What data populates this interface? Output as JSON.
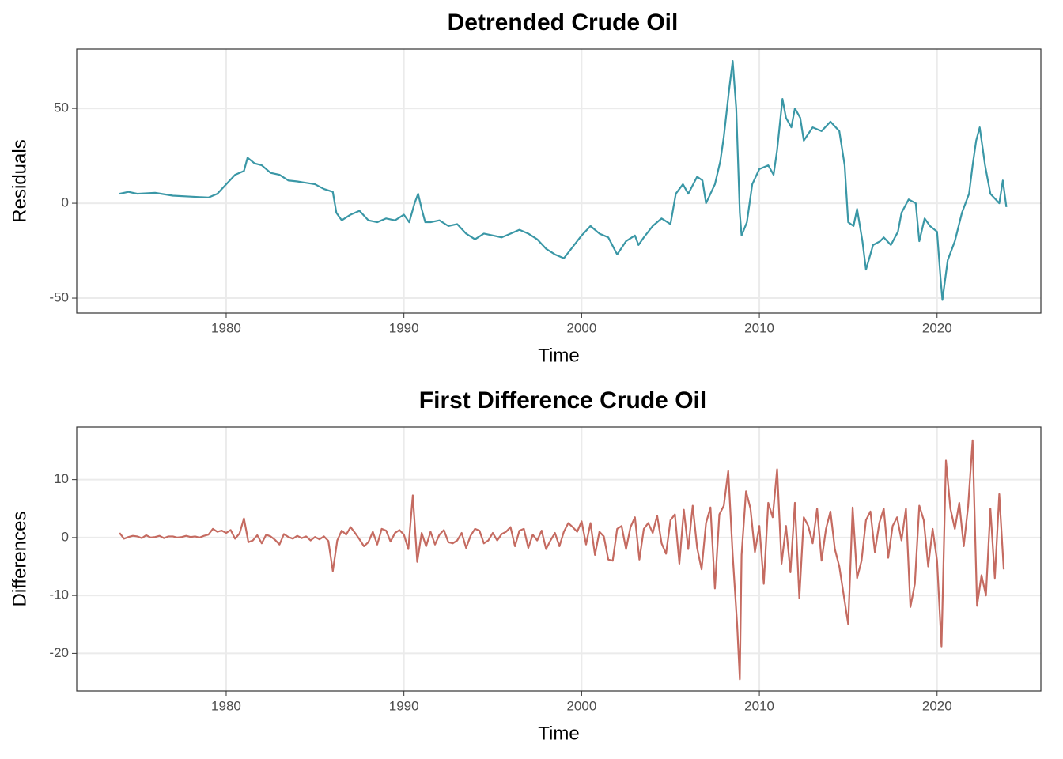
{
  "chart_data": [
    {
      "type": "line",
      "title": "Detrended Crude Oil",
      "x_label": "Time",
      "y_label": "Residuals",
      "color": "#3a97a6",
      "grid": true,
      "xlim": [
        1971.59,
        2025.84
      ],
      "ylim": [
        -57.9,
        81.3
      ],
      "xticks": [
        1980,
        1990,
        2000,
        2010,
        2020
      ],
      "yticks": [
        -50,
        0,
        50
      ],
      "x": [
        1974,
        1974.5,
        1975,
        1976,
        1977,
        1978,
        1979,
        1979.5,
        1980,
        1980.5,
        1981,
        1981.2,
        1981.6,
        1982,
        1982.5,
        1983,
        1983.5,
        1984,
        1985,
        1985.5,
        1986,
        1986.2,
        1986.5,
        1987,
        1987.5,
        1988,
        1988.5,
        1989,
        1989.5,
        1990,
        1990.3,
        1990.6,
        1990.8,
        1991,
        1991.2,
        1991.5,
        1992,
        1992.5,
        1993,
        1993.5,
        1994,
        1994.5,
        1995,
        1995.5,
        1996,
        1996.5,
        1997,
        1997.5,
        1998,
        1998.5,
        1999,
        1999.5,
        2000,
        2000.5,
        2001,
        2001.5,
        2002,
        2002.5,
        2003,
        2003.2,
        2003.5,
        2004,
        2004.5,
        2005,
        2005.3,
        2005.7,
        2006,
        2006.5,
        2006.8,
        2007,
        2007.5,
        2007.8,
        2008,
        2008.3,
        2008.5,
        2008.7,
        2008.9,
        2009,
        2009.3,
        2009.6,
        2010,
        2010.5,
        2010.8,
        2011,
        2011.3,
        2011.5,
        2011.8,
        2012,
        2012.3,
        2012.5,
        2013,
        2013.5,
        2014,
        2014.5,
        2014.8,
        2015,
        2015.3,
        2015.5,
        2015.8,
        2016,
        2016.4,
        2016.8,
        2017,
        2017.4,
        2017.8,
        2018,
        2018.4,
        2018.8,
        2019,
        2019.3,
        2019.6,
        2020,
        2020.2,
        2020.3,
        2020.6,
        2021,
        2021.4,
        2021.8,
        2022,
        2022.2,
        2022.4,
        2022.7,
        2023,
        2023.5,
        2023.7,
        2023.9
      ],
      "values": [
        5,
        6,
        5,
        5.5,
        4,
        3.5,
        3,
        5,
        10,
        15,
        17,
        24,
        21,
        20,
        16,
        15,
        12,
        11.5,
        10,
        7.5,
        6,
        -5,
        -9,
        -6,
        -4,
        -9,
        -10,
        -8,
        -9,
        -6,
        -10,
        0,
        5,
        -3,
        -10,
        -10,
        -9,
        -12,
        -11,
        -16,
        -19,
        -16,
        -17,
        -18,
        -16,
        -14,
        -16,
        -19,
        -24,
        -27,
        -29,
        -23,
        -17,
        -12,
        -16,
        -18,
        -27,
        -20,
        -17,
        -22,
        -18,
        -12,
        -8,
        -11,
        5,
        10,
        5,
        14,
        12,
        0,
        10,
        22,
        35,
        60,
        75,
        50,
        -5,
        -17,
        -10,
        10,
        18,
        20,
        15,
        28,
        55,
        45,
        40,
        50,
        45,
        33,
        40,
        38,
        43,
        38,
        20,
        -10,
        -12,
        -3,
        -20,
        -35,
        -22,
        -20,
        -18,
        -22,
        -15,
        -5,
        2,
        0,
        -20,
        -8,
        -12,
        -15,
        -40,
        -51,
        -30,
        -20,
        -5,
        5,
        20,
        33,
        40,
        20,
        5,
        0,
        12,
        -2
      ]
    },
    {
      "type": "line",
      "title": "First Difference Crude Oil",
      "x_label": "Time",
      "y_label": "Differences",
      "color": "#c56b61",
      "grid": true,
      "xlim": [
        1971.59,
        2025.84
      ],
      "ylim": [
        -26.5,
        19.1
      ],
      "xticks": [
        1980,
        1990,
        2000,
        2010,
        2020
      ],
      "yticks": [
        -20,
        -10,
        0,
        10
      ],
      "x": [
        1974,
        1974.25,
        1974.5,
        1974.75,
        1975,
        1975.25,
        1975.5,
        1975.75,
        1976,
        1976.25,
        1976.5,
        1976.75,
        1977,
        1977.25,
        1977.5,
        1977.75,
        1978,
        1978.25,
        1978.5,
        1978.75,
        1979,
        1979.25,
        1979.5,
        1979.75,
        1980,
        1980.25,
        1980.5,
        1980.75,
        1981,
        1981.25,
        1981.5,
        1981.75,
        1982,
        1982.25,
        1982.5,
        1982.75,
        1983,
        1983.25,
        1983.5,
        1983.75,
        1984,
        1984.25,
        1984.5,
        1984.75,
        1985,
        1985.25,
        1985.5,
        1985.75,
        1986,
        1986.25,
        1986.5,
        1986.75,
        1987,
        1987.25,
        1987.5,
        1987.75,
        1988,
        1988.25,
        1988.5,
        1988.75,
        1989,
        1989.25,
        1989.5,
        1989.75,
        1990,
        1990.25,
        1990.5,
        1990.75,
        1991,
        1991.25,
        1991.5,
        1991.75,
        1992,
        1992.25,
        1992.5,
        1992.75,
        1993,
        1993.25,
        1993.5,
        1993.75,
        1994,
        1994.25,
        1994.5,
        1994.75,
        1995,
        1995.25,
        1995.5,
        1995.75,
        1996,
        1996.25,
        1996.5,
        1996.75,
        1997,
        1997.25,
        1997.5,
        1997.75,
        1998,
        1998.25,
        1998.5,
        1998.75,
        1999,
        1999.25,
        1999.5,
        1999.75,
        2000,
        2000.25,
        2000.5,
        2000.75,
        2001,
        2001.25,
        2001.5,
        2001.75,
        2002,
        2002.25,
        2002.5,
        2002.75,
        2003,
        2003.25,
        2003.5,
        2003.75,
        2004,
        2004.25,
        2004.5,
        2004.75,
        2005,
        2005.25,
        2005.5,
        2005.75,
        2006,
        2006.25,
        2006.5,
        2006.75,
        2007,
        2007.25,
        2007.5,
        2007.75,
        2008,
        2008.25,
        2008.5,
        2008.75,
        2008.9,
        2009,
        2009.25,
        2009.5,
        2009.75,
        2010,
        2010.25,
        2010.5,
        2010.75,
        2011,
        2011.25,
        2011.5,
        2011.75,
        2012,
        2012.25,
        2012.5,
        2012.75,
        2013,
        2013.25,
        2013.5,
        2013.75,
        2014,
        2014.25,
        2014.5,
        2014.75,
        2015,
        2015.25,
        2015.5,
        2015.75,
        2016,
        2016.25,
        2016.5,
        2016.75,
        2017,
        2017.25,
        2017.5,
        2017.75,
        2018,
        2018.25,
        2018.5,
        2018.75,
        2019,
        2019.25,
        2019.5,
        2019.75,
        2020,
        2020.25,
        2020.5,
        2020.75,
        2021,
        2021.25,
        2021.5,
        2021.75,
        2022,
        2022.25,
        2022.5,
        2022.75,
        2023,
        2023.25,
        2023.5,
        2023.75
      ],
      "values": [
        0.8,
        -0.2,
        0.1,
        0.3,
        0.2,
        -0.1,
        0.4,
        0.0,
        0.1,
        0.3,
        -0.1,
        0.2,
        0.2,
        0.0,
        0.1,
        0.3,
        0.1,
        0.2,
        0.0,
        0.3,
        0.5,
        1.5,
        1.0,
        1.2,
        0.8,
        1.3,
        -0.2,
        0.7,
        3.3,
        -0.8,
        -0.5,
        0.4,
        -1.0,
        0.5,
        0.2,
        -0.4,
        -1.2,
        0.6,
        0.1,
        -0.2,
        0.3,
        -0.1,
        0.2,
        -0.5,
        0.1,
        -0.3,
        0.2,
        -0.6,
        -5.8,
        -0.5,
        1.2,
        0.5,
        1.8,
        0.8,
        -0.3,
        -1.5,
        -0.8,
        1.0,
        -1.2,
        1.5,
        1.2,
        -0.7,
        0.8,
        1.3,
        0.5,
        -2.0,
        7.3,
        -4.2,
        0.8,
        -1.5,
        1.0,
        -1.2,
        0.5,
        1.3,
        -0.8,
        -1.0,
        -0.5,
        0.8,
        -1.8,
        0.3,
        1.5,
        1.2,
        -1.0,
        -0.5,
        0.8,
        -0.5,
        0.6,
        1.0,
        1.8,
        -1.5,
        1.2,
        1.5,
        -1.8,
        0.5,
        -0.5,
        1.2,
        -2.0,
        -0.5,
        0.8,
        -1.5,
        1.0,
        2.5,
        1.8,
        1.0,
        2.8,
        -1.2,
        2.5,
        -3.0,
        1.0,
        0.2,
        -3.8,
        -4.0,
        1.5,
        2.0,
        -2.0,
        1.8,
        3.5,
        -3.8,
        1.5,
        2.5,
        0.8,
        3.8,
        -1.0,
        -2.8,
        3.0,
        4.0,
        -4.5,
        4.8,
        -2.0,
        5.5,
        -1.8,
        -5.5,
        2.5,
        5.2,
        -8.8,
        4.0,
        5.5,
        11.5,
        -3.0,
        -15,
        -24.5,
        -3.0,
        8.0,
        5.0,
        -2.5,
        2.0,
        -8.0,
        6.0,
        3.5,
        11.8,
        -4.5,
        2.0,
        -6.0,
        6.0,
        -10.5,
        3.5,
        2.0,
        -1.0,
        5.0,
        -4.0,
        1.5,
        4.5,
        -2.0,
        -5.0,
        -10.0,
        -15.0,
        5.2,
        -7.0,
        -4.0,
        3.0,
        4.5,
        -2.5,
        2.5,
        5.0,
        -3.5,
        2.0,
        3.5,
        -0.5,
        5.0,
        -12.0,
        -8.0,
        5.5,
        3.0,
        -5.0,
        1.5,
        -4.0,
        -18.8,
        13.3,
        5.0,
        1.5,
        6.0,
        -1.5,
        5.5,
        16.8,
        -11.8,
        -6.5,
        -10.0,
        5.0,
        -7.0,
        7.5,
        -5.5
      ]
    }
  ]
}
